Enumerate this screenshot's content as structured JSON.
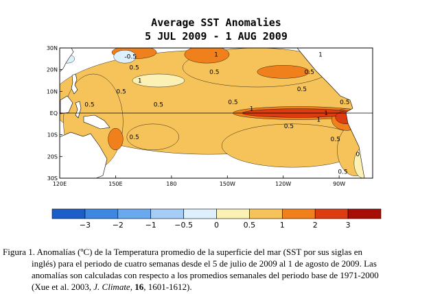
{
  "chart_data": {
    "type": "heatmap",
    "title": "Average SST Anomalies",
    "subtitle": "5 JUL 2009 - 1 AUG 2009",
    "x_ticks": [
      "120E",
      "150E",
      "180",
      "150W",
      "120W",
      "90W"
    ],
    "y_ticks": [
      "30N",
      "20N",
      "10N",
      "EQ",
      "10S",
      "20S",
      "30S"
    ],
    "xlim": [
      120,
      288
    ],
    "ylim": [
      -30,
      30
    ],
    "colorbar": {
      "bounds": [
        -4,
        -3,
        -2,
        -1,
        -0.5,
        0,
        0.5,
        1,
        2,
        3,
        4
      ],
      "tick_labels": [
        "−3",
        "−2",
        "−1",
        "−0.5",
        "0",
        "0.5",
        "1",
        "2",
        "3"
      ],
      "colors": [
        "#1c5ec8",
        "#3d87e0",
        "#6aa9ee",
        "#a6cdf5",
        "#ddf0fb",
        "#fbf1b4",
        "#f5c35a",
        "#f0801c",
        "#dd3b10",
        "#a50d05"
      ]
    },
    "contour_labels": [
      {
        "text": "-0.5",
        "lon": 158,
        "lat": 26
      },
      {
        "text": "0.5",
        "lon": 160,
        "lat": 21
      },
      {
        "text": "1",
        "lon": 163,
        "lat": 15
      },
      {
        "text": "1",
        "lon": 204,
        "lat": 27
      },
      {
        "text": "0.5",
        "lon": 203,
        "lat": 19
      },
      {
        "text": "1",
        "lon": 260,
        "lat": 27
      },
      {
        "text": "0.5",
        "lon": 254,
        "lat": 19
      },
      {
        "text": "0.5",
        "lon": 153,
        "lat": 10
      },
      {
        "text": "0.5",
        "lon": 136,
        "lat": 4
      },
      {
        "text": "0.5",
        "lon": 173,
        "lat": 4
      },
      {
        "text": "0.5",
        "lon": 213,
        "lat": 5
      },
      {
        "text": "1",
        "lon": 223,
        "lat": 2
      },
      {
        "text": "0.5",
        "lon": 250,
        "lat": 11
      },
      {
        "text": "0.5",
        "lon": 273,
        "lat": 5
      },
      {
        "text": "1",
        "lon": 259,
        "lat": -3
      },
      {
        "text": "1",
        "lon": 263,
        "lat": 0
      },
      {
        "text": "0.5",
        "lon": 243,
        "lat": -6
      },
      {
        "text": "0.5",
        "lon": 160,
        "lat": -11
      },
      {
        "text": "0.5",
        "lon": 268,
        "lat": -12
      },
      {
        "text": "0",
        "lon": 280,
        "lat": -19
      },
      {
        "text": "0.5",
        "lon": 272,
        "lat": -27
      }
    ],
    "anomaly_regions": [
      {
        "level": 0.5,
        "lon": 200,
        "lat": 5,
        "rx": 85,
        "ry": 24
      },
      {
        "level": 0.5,
        "lon": 138,
        "lat": -4,
        "rx": 16,
        "ry": 22
      },
      {
        "level": 0.5,
        "lon": 245,
        "lat": -15,
        "rx": 38,
        "ry": 10
      },
      {
        "level": 0.5,
        "lon": 279,
        "lat": -17,
        "rx": 10,
        "ry": 12
      },
      {
        "level": 0.5,
        "lon": 226,
        "lat": 21,
        "rx": 40,
        "ry": 9
      },
      {
        "level": 0.5,
        "lon": 170,
        "lat": -11,
        "rx": 14,
        "ry": 6
      },
      {
        "level": 1,
        "lon": 160,
        "lat": 28,
        "rx": 12,
        "ry": 3
      },
      {
        "level": 1,
        "lon": 199,
        "lat": 27,
        "rx": 12,
        "ry": 4
      },
      {
        "level": 1,
        "lon": 264,
        "lat": 24,
        "rx": 9,
        "ry": 5
      },
      {
        "level": 1,
        "lon": 240,
        "lat": 19,
        "rx": 14,
        "ry": 3
      },
      {
        "level": 1,
        "lon": 248,
        "lat": 0,
        "rx": 35,
        "ry": 3
      },
      {
        "level": 1,
        "lon": 274,
        "lat": -3,
        "rx": 8,
        "ry": 5
      },
      {
        "level": 1,
        "lon": 150,
        "lat": -12,
        "rx": 4,
        "ry": 5
      },
      {
        "level": 2,
        "lon": 248,
        "lat": 0,
        "rx": 30,
        "ry": 2
      },
      {
        "level": 2,
        "lon": 274,
        "lat": -2,
        "rx": 6,
        "ry": 3
      },
      {
        "level": 2,
        "lon": 262,
        "lat": 27,
        "rx": 4,
        "ry": 3
      },
      {
        "level": -0.5,
        "lon": 155,
        "lat": 26,
        "rx": 6,
        "ry": 3
      },
      {
        "level": -0.5,
        "lon": 124,
        "lat": 25,
        "rx": 4,
        "ry": 2
      },
      {
        "level": 0,
        "lon": 173,
        "lat": 15,
        "rx": 14,
        "ry": 3
      },
      {
        "level": 0,
        "lon": 283,
        "lat": -23,
        "rx": 5,
        "ry": 7
      },
      {
        "level": 0,
        "lon": 283,
        "lat": 10,
        "rx": 4,
        "ry": 6
      }
    ]
  },
  "caption": {
    "line1": "Figura 1. Anomalías (ºC) de la Temperatura promedio de la superficie del mar (SST por sus siglas en",
    "line2a": "inglés) para el periodo de cuatro semanas desde el 5 de julio de 2009 al 1 de agosto de 2009. Las",
    "line2b": "anomalías son calculadas con respecto a los promedios semanales del periodo base de 1971-2000",
    "line2c_pre": "(Xue et al. 2003, ",
    "journal": "J. Climate",
    "sep1": ", ",
    "volume": "16",
    "line2c_post": ", 1601-1612)."
  }
}
